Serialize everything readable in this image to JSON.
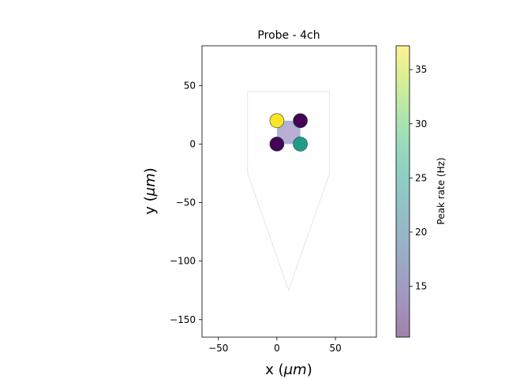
{
  "chart_data": {
    "type": "scatter",
    "title": "Probe - 4ch",
    "xlabel": "x ($\\mu m$)",
    "xlabel_prefix": "x (",
    "xlabel_mu": "μm",
    "xlabel_suffix": ")",
    "ylabel_prefix": "y (",
    "ylabel_mu": "μm",
    "ylabel_suffix": ")",
    "xlim": [
      -64,
      85
    ],
    "ylim": [
      -165,
      84
    ],
    "xticks": [
      -50,
      0,
      50
    ],
    "xtick_labels": [
      "−50",
      "0",
      "50"
    ],
    "yticks": [
      -150,
      -100,
      -50,
      0,
      50
    ],
    "ytick_labels": [
      "−150",
      "−100",
      "−50",
      "0",
      "50"
    ],
    "probe_outline": [
      [
        -25,
        45
      ],
      [
        45,
        45
      ],
      [
        45,
        -25
      ],
      [
        10,
        -125
      ],
      [
        -25,
        -25
      ]
    ],
    "contacts": [
      {
        "x": 0,
        "y": 0,
        "rate": 10.5
      },
      {
        "x": 0,
        "y": 20,
        "rate": 37.0
      },
      {
        "x": 20,
        "y": 0,
        "rate": 25.0
      },
      {
        "x": 20,
        "y": 20,
        "rate": 10.5
      }
    ],
    "rate_map": {
      "x": [
        0,
        20
      ],
      "y": [
        0,
        20
      ],
      "peak_center": [
        10,
        10
      ],
      "value": 14
    },
    "colorbar": {
      "label": "Peak rate (Hz)",
      "range": [
        10.3,
        37.2
      ],
      "ticks": [
        15,
        20,
        25,
        30,
        35
      ],
      "tick_labels": [
        "15",
        "20",
        "25",
        "30",
        "35"
      ]
    },
    "colors": {
      "viridis": [
        "#440154",
        "#482878",
        "#3e4989",
        "#31688e",
        "#26828e",
        "#1f9e89",
        "#35b779",
        "#6ece58",
        "#b5de2b",
        "#fde725"
      ]
    }
  }
}
